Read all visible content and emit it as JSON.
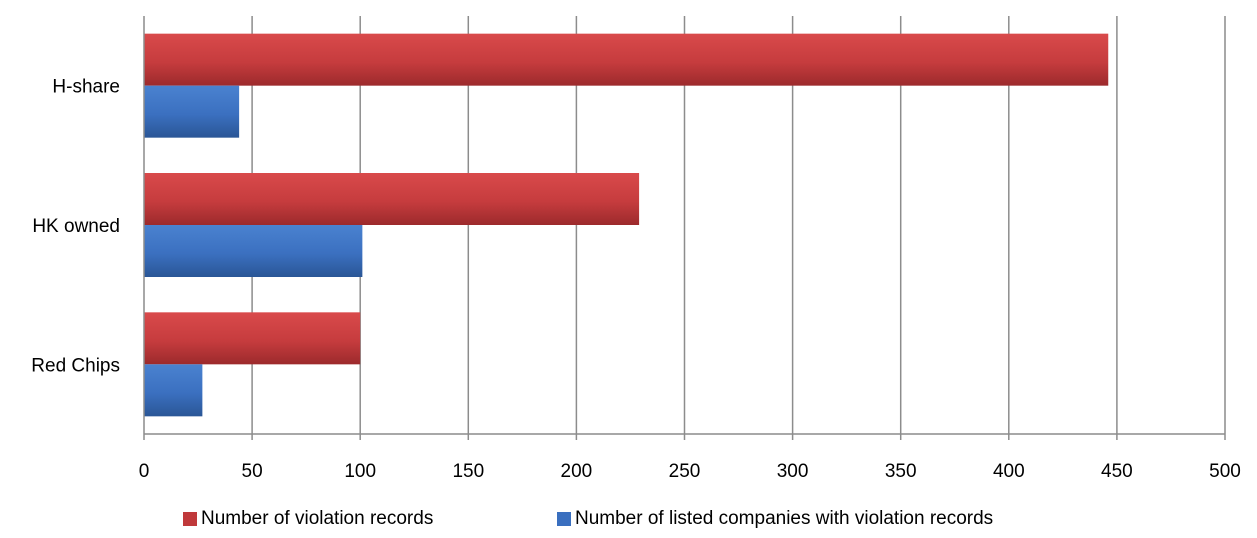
{
  "chart_data": {
    "type": "bar",
    "orientation": "horizontal",
    "categories": [
      "Red Chips",
      "HK owned",
      "H-share"
    ],
    "series": [
      {
        "name": "Number of violation records",
        "values": [
          100,
          229,
          446
        ],
        "color": "#c0393b"
      },
      {
        "name": "Number of listed companies with violation records",
        "values": [
          27,
          101,
          44
        ],
        "color": "#3a6fbf"
      }
    ],
    "xlim": [
      0,
      500
    ],
    "xticks": [
      "0",
      "50",
      "100",
      "150",
      "200",
      "250",
      "300",
      "350",
      "400",
      "450",
      "500"
    ],
    "grid": true,
    "legend_position": "bottom",
    "title": "",
    "xlabel": "",
    "ylabel": ""
  }
}
